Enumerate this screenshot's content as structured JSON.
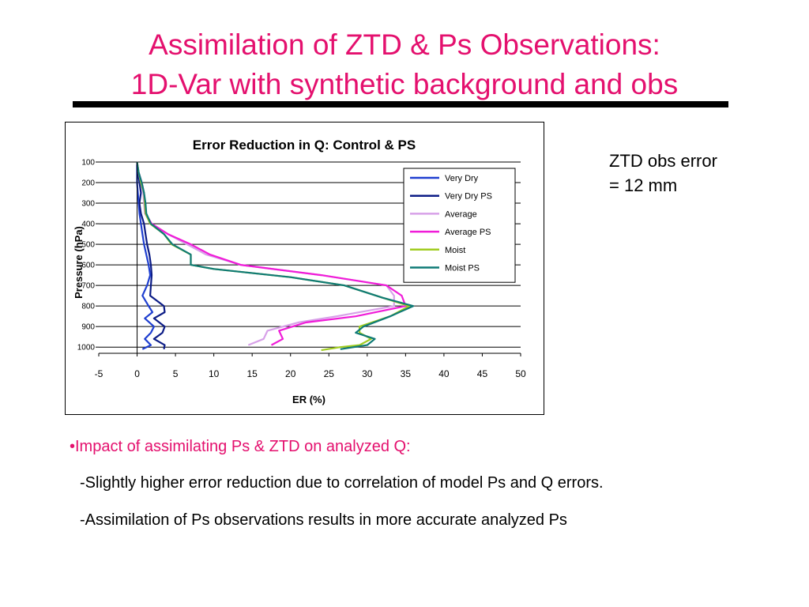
{
  "slide": {
    "title_line1": "Assimilation of ZTD & Ps Observations:",
    "title_line2": "1D-Var with synthetic background and obs",
    "side_note_line1": "ZTD obs error",
    "side_note_line2": "= 12 mm",
    "bullet_head": "•Impact of assimilating Ps & ZTD on analyzed Q:",
    "bullet_sub1": "-Slightly higher error reduction due to correlation of model Ps and Q errors.",
    "bullet_sub2": "-Assimilation of Ps observations results in more accurate analyzed Ps"
  },
  "colors": {
    "title": "#e4106e",
    "rule": "#000000"
  },
  "chart_data": {
    "type": "line",
    "title": "Error Reduction in Q: Control & PS",
    "xlabel": "ER (%)",
    "ylabel": "Pressure (hPa)",
    "xlim": [
      -5,
      50
    ],
    "ylim": [
      100,
      1030
    ],
    "y_inverted": true,
    "grid": "horizontal",
    "xticks": [
      -5,
      0,
      5,
      10,
      15,
      20,
      25,
      30,
      35,
      40,
      45,
      50
    ],
    "yticks": [
      100,
      200,
      300,
      400,
      500,
      600,
      700,
      800,
      900,
      1000
    ],
    "legend_position": "top-right",
    "series": [
      {
        "name": "Very Dry",
        "color": "#1f3fd0",
        "width": 2.2,
        "points": [
          [
            0,
            100
          ],
          [
            0,
            150
          ],
          [
            0,
            200
          ],
          [
            0.1,
            250
          ],
          [
            0.2,
            300
          ],
          [
            0.3,
            350
          ],
          [
            0.5,
            400
          ],
          [
            0.7,
            450
          ],
          [
            0.9,
            500
          ],
          [
            1.2,
            550
          ],
          [
            1.5,
            600
          ],
          [
            1.7,
            650
          ],
          [
            1.3,
            700
          ],
          [
            0.7,
            750
          ],
          [
            1.5,
            800
          ],
          [
            2.0,
            830
          ],
          [
            1.0,
            860
          ],
          [
            2.2,
            900
          ],
          [
            1.8,
            930
          ],
          [
            1.0,
            960
          ],
          [
            1.8,
            990
          ],
          [
            0.7,
            1010
          ]
        ]
      },
      {
        "name": "Very Dry PS",
        "color": "#0c1c86",
        "width": 2.2,
        "points": [
          [
            0,
            100
          ],
          [
            0.1,
            150
          ],
          [
            0.3,
            200
          ],
          [
            0.5,
            250
          ],
          [
            0.3,
            300
          ],
          [
            0.5,
            350
          ],
          [
            0.9,
            400
          ],
          [
            1.1,
            450
          ],
          [
            1.3,
            500
          ],
          [
            1.6,
            550
          ],
          [
            1.8,
            600
          ],
          [
            1.9,
            650
          ],
          [
            1.8,
            700
          ],
          [
            1.7,
            750
          ],
          [
            3.5,
            800
          ],
          [
            3.6,
            830
          ],
          [
            2.2,
            860
          ],
          [
            3.6,
            900
          ],
          [
            3.3,
            930
          ],
          [
            2.2,
            960
          ],
          [
            3.6,
            990
          ],
          [
            3.5,
            1010
          ]
        ]
      },
      {
        "name": "Average",
        "color": "#d7a0e8",
        "width": 2.2,
        "points": [
          [
            0,
            100
          ],
          [
            0.2,
            150
          ],
          [
            0.5,
            200
          ],
          [
            0.8,
            250
          ],
          [
            0.9,
            300
          ],
          [
            1.0,
            350
          ],
          [
            1.8,
            400
          ],
          [
            4,
            450
          ],
          [
            6.5,
            500
          ],
          [
            9,
            550
          ],
          [
            13.5,
            600
          ],
          [
            24,
            650
          ],
          [
            32.5,
            700
          ],
          [
            33.5,
            750
          ],
          [
            33.5,
            800
          ],
          [
            26,
            850
          ],
          [
            21,
            880
          ],
          [
            17,
            920
          ],
          [
            16.5,
            960
          ],
          [
            14.5,
            990
          ]
        ]
      },
      {
        "name": "Average PS",
        "color": "#f01cd8",
        "width": 2.2,
        "points": [
          [
            0,
            100
          ],
          [
            0.2,
            150
          ],
          [
            0.6,
            200
          ],
          [
            0.9,
            250
          ],
          [
            1.0,
            300
          ],
          [
            1.1,
            350
          ],
          [
            1.9,
            400
          ],
          [
            4,
            450
          ],
          [
            7,
            500
          ],
          [
            9.5,
            550
          ],
          [
            13.5,
            600
          ],
          [
            24,
            650
          ],
          [
            32.5,
            700
          ],
          [
            34.5,
            750
          ],
          [
            35,
            800
          ],
          [
            28.5,
            850
          ],
          [
            22,
            880
          ],
          [
            18.5,
            920
          ],
          [
            19,
            960
          ],
          [
            17.5,
            990
          ]
        ]
      },
      {
        "name": "Moist",
        "color": "#a0cc20",
        "width": 2.2,
        "points": [
          [
            0,
            100
          ],
          [
            0.2,
            150
          ],
          [
            0.5,
            200
          ],
          [
            0.9,
            250
          ],
          [
            1.0,
            300
          ],
          [
            1.1,
            350
          ],
          [
            1.7,
            400
          ],
          [
            3.5,
            450
          ],
          [
            4.5,
            500
          ],
          [
            7,
            550
          ],
          [
            7,
            600
          ],
          [
            10,
            620
          ],
          [
            20,
            660
          ],
          [
            27,
            700
          ],
          [
            32,
            760
          ],
          [
            35.5,
            800
          ],
          [
            33,
            850
          ],
          [
            29,
            900
          ],
          [
            29,
            930
          ],
          [
            30.5,
            960
          ],
          [
            29,
            990
          ],
          [
            26.5,
            1000
          ],
          [
            24,
            1015
          ]
        ]
      },
      {
        "name": "Moist PS",
        "color": "#0f7a76",
        "width": 2.2,
        "points": [
          [
            0,
            100
          ],
          [
            0.2,
            150
          ],
          [
            0.6,
            200
          ],
          [
            0.9,
            250
          ],
          [
            1.1,
            300
          ],
          [
            1.2,
            350
          ],
          [
            1.8,
            400
          ],
          [
            3.5,
            450
          ],
          [
            4.6,
            500
          ],
          [
            7,
            550
          ],
          [
            7,
            600
          ],
          [
            10,
            620
          ],
          [
            20,
            660
          ],
          [
            27,
            700
          ],
          [
            32,
            760
          ],
          [
            36,
            800
          ],
          [
            33,
            850
          ],
          [
            29.5,
            900
          ],
          [
            28.5,
            930
          ],
          [
            31,
            960
          ],
          [
            30,
            990
          ],
          [
            26.5,
            1010
          ]
        ]
      }
    ]
  }
}
